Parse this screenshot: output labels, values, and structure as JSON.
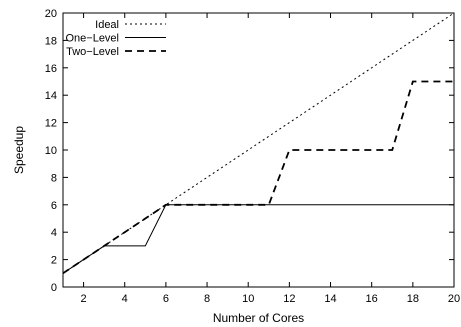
{
  "chart_data": {
    "type": "line",
    "title": "",
    "xlabel": "Number of Cores",
    "ylabel": "Speedup",
    "xlim": [
      1,
      20
    ],
    "ylim": [
      0,
      20
    ],
    "xticks": [
      2,
      4,
      6,
      8,
      10,
      12,
      14,
      16,
      18,
      20
    ],
    "yticks": [
      0,
      2,
      4,
      6,
      8,
      10,
      12,
      14,
      16,
      18,
      20
    ],
    "grid": false,
    "legend_position": "top-left",
    "series": [
      {
        "name": "Ideal",
        "style": "dotted",
        "color": "#000000",
        "x": [
          1,
          20
        ],
        "y": [
          1,
          20
        ]
      },
      {
        "name": "One−Level",
        "style": "solid",
        "color": "#000000",
        "x": [
          1,
          2,
          3,
          4,
          5,
          6,
          7,
          8,
          9,
          10,
          11,
          12,
          13,
          14,
          15,
          16,
          17,
          18,
          19,
          20
        ],
        "y": [
          1,
          2,
          3,
          3,
          3,
          6,
          6,
          6,
          6,
          6,
          6,
          6,
          6,
          6,
          6,
          6,
          6,
          6,
          6,
          6
        ]
      },
      {
        "name": "Two−Level",
        "style": "dashed",
        "color": "#000000",
        "x": [
          1,
          2,
          3,
          4,
          5,
          6,
          7,
          8,
          9,
          10,
          11,
          12,
          13,
          14,
          15,
          16,
          17,
          18,
          19,
          20
        ],
        "y": [
          1,
          2,
          3,
          4,
          5,
          6,
          6,
          6,
          6,
          6,
          6,
          10,
          10,
          10,
          10,
          10,
          10,
          15,
          15,
          15
        ]
      }
    ]
  }
}
